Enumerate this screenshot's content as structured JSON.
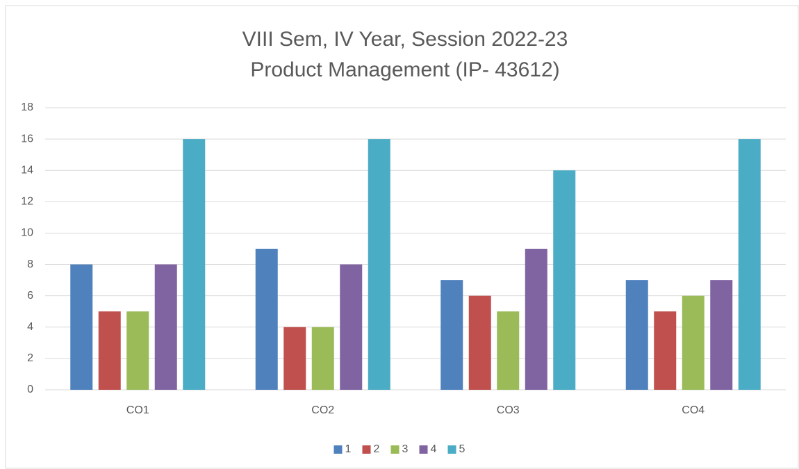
{
  "chart_data": {
    "type": "bar",
    "title": [
      "VIII Sem, IV Year, Session 2022-23",
      "Product Management (IP- 43612)"
    ],
    "categories": [
      "CO1",
      "CO2",
      "CO3",
      "CO4"
    ],
    "series": [
      {
        "name": "1",
        "color": "#4f81bd",
        "values": [
          8,
          9,
          7,
          7
        ]
      },
      {
        "name": "2",
        "color": "#c0504d",
        "values": [
          5,
          4,
          6,
          5
        ]
      },
      {
        "name": "3",
        "color": "#9bbb59",
        "values": [
          5,
          4,
          5,
          6
        ]
      },
      {
        "name": "4",
        "color": "#8064a2",
        "values": [
          8,
          8,
          9,
          7
        ]
      },
      {
        "name": "5",
        "color": "#4bacc6",
        "values": [
          16,
          16,
          14,
          16
        ]
      }
    ],
    "ylim": [
      0,
      18
    ],
    "yticks": [
      0,
      2,
      4,
      6,
      8,
      10,
      12,
      14,
      16,
      18
    ],
    "grid": true,
    "legend": "bottom"
  }
}
